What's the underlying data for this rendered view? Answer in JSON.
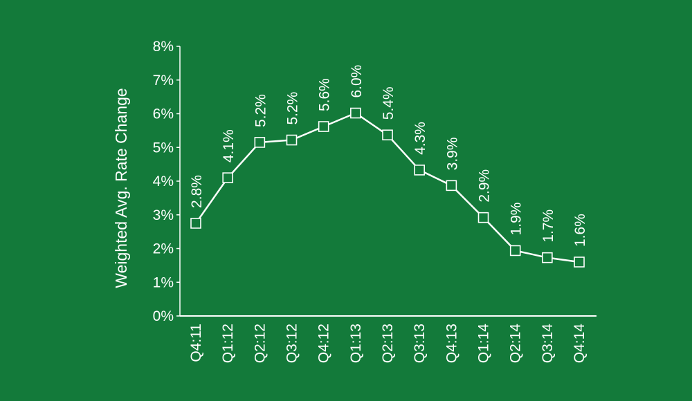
{
  "colors": {
    "background": "#137a3a",
    "foreground": "#ffffff"
  },
  "chart_data": {
    "type": "line",
    "title": "",
    "xlabel": "",
    "ylabel": "Weighted Avg. Rate Change",
    "categories": [
      "Q4:11",
      "Q1:12",
      "Q2:12",
      "Q3:12",
      "Q4:12",
      "Q1:13",
      "Q2:13",
      "Q3:13",
      "Q4:13",
      "Q1:14",
      "Q2:14",
      "Q3:14",
      "Q4:14"
    ],
    "series": [
      {
        "values": [
          2.75,
          4.1,
          5.15,
          5.22,
          5.62,
          6.02,
          5.37,
          4.33,
          3.87,
          2.92,
          1.94,
          1.73,
          1.6
        ],
        "data_labels": [
          "2.8%",
          "4.1%",
          "5.2%",
          "5.2%",
          "5.6%",
          "6.0%",
          "5.4%",
          "4.3%",
          "3.9%",
          "2.9%",
          "1.9%",
          "1.7%",
          "1.6%"
        ],
        "marker": "open-square"
      }
    ],
    "ylim": [
      0,
      8
    ],
    "yticks": [
      "0%",
      "1%",
      "2%",
      "3%",
      "4%",
      "5%",
      "6%",
      "7%",
      "8%"
    ],
    "grid": false,
    "legend": "none"
  }
}
